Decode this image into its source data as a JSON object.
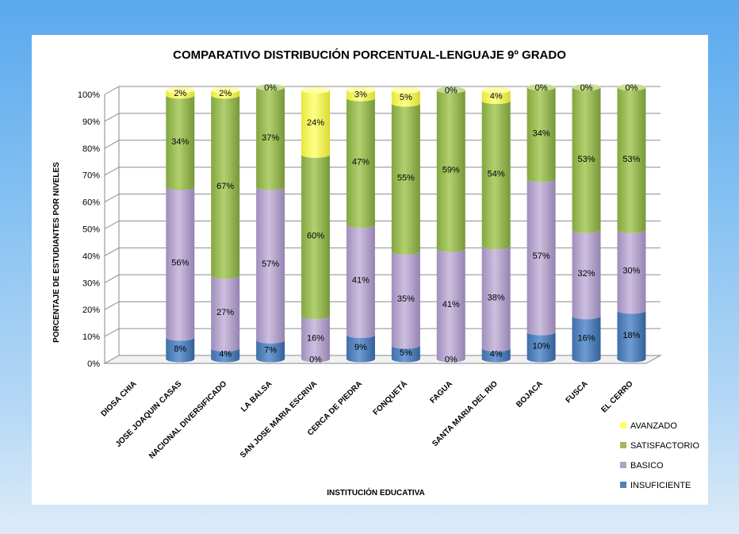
{
  "chart_data": {
    "type": "bar",
    "stacked": true,
    "title": "COMPARATIVO DISTRIBUCIÓN PORCENTUAL-LENGUAJE 9º GRADO",
    "xlabel": "INSTITUCIÓN EDUCATIVA",
    "ylabel": "PORCENTAJE DE ESTUDIANTES POR NIVELES",
    "ylim": [
      0,
      100
    ],
    "yticks": [
      "0%",
      "10%",
      "20%",
      "30%",
      "40%",
      "50%",
      "60%",
      "70%",
      "80%",
      "90%",
      "100%"
    ],
    "grid": true,
    "legend_position": "bottom-right",
    "categories": [
      "DIOSA CHIA",
      "JOSE JOAQUIN CASAS",
      "NACIONAL DIVERSIFICADO",
      "LA BALSA",
      "SAN JOSE MARIA ESCRIVA",
      "CERCA DE PIEDRA",
      "FONQUETÁ",
      "FAGUA",
      "SANTA MARIA DEL RIO",
      "BOJACA",
      "FUSCA",
      "EL CERRO"
    ],
    "series": [
      {
        "name": "INSUFICIENTE",
        "color": "#4f81bd",
        "values": [
          null,
          8,
          4,
          7,
          0,
          9,
          5,
          0,
          4,
          10,
          16,
          18
        ]
      },
      {
        "name": "BASICO",
        "color": "#b3a2c7",
        "values": [
          null,
          56,
          27,
          57,
          16,
          41,
          35,
          41,
          38,
          57,
          32,
          30
        ]
      },
      {
        "name": "SATISFACTORIO",
        "color": "#9bbb59",
        "values": [
          null,
          34,
          67,
          37,
          60,
          47,
          55,
          59,
          54,
          34,
          53,
          53
        ]
      },
      {
        "name": "AVANZADO",
        "color": "#ffff66",
        "values": [
          null,
          2,
          2,
          0,
          24,
          3,
          5,
          0,
          4,
          0,
          0,
          0
        ]
      }
    ],
    "data_labels": [
      [
        null,
        "8%",
        "4%",
        "7%",
        "0%",
        "9%",
        "5%",
        "0%",
        "4%",
        "10%",
        "16%",
        "18%"
      ],
      [
        null,
        "56%",
        "27%",
        "57%",
        "16%",
        "41%",
        "35%",
        "41%",
        "38%",
        "57%",
        "32%",
        "30%"
      ],
      [
        null,
        "34%",
        "67%",
        "37%",
        "60%",
        "47%",
        "55%",
        "59%",
        "54%",
        "34%",
        "53%",
        "53%"
      ],
      [
        null,
        "2%",
        "2%",
        "0%",
        "24%",
        "3%",
        "5%",
        "0%",
        "4%",
        "0%",
        "0%",
        "0%"
      ]
    ]
  }
}
